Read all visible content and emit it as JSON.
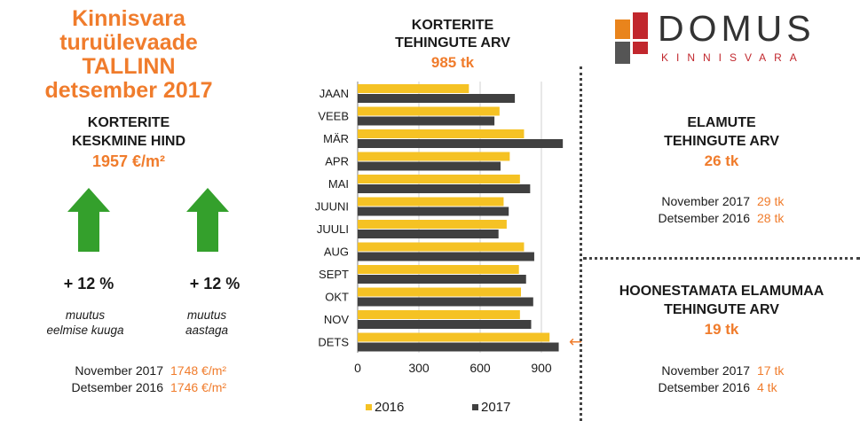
{
  "header": {
    "title_line1": "Kinnisvara turuülevaade",
    "title_line2": "TALLINN",
    "title_line3": "detsember 2017"
  },
  "apartment_price": {
    "heading_line1": "KORTERITE",
    "heading_line2": "KESKMINE HIND",
    "value": "1957 €/m²",
    "monthly_change": "+ 12 %",
    "monthly_caption_line1": "muutus",
    "monthly_caption_line2": "eelmise kuuga",
    "yearly_change": "+ 12 %",
    "yearly_caption_line1": "muutus",
    "yearly_caption_line2": "aastaga",
    "arrow_color": "#34a02c",
    "comparisons": [
      {
        "label": "November  2017",
        "value": "1748 €/m²"
      },
      {
        "label": "Detsember 2016",
        "value": "1746 €/m²"
      }
    ]
  },
  "transactions_chart": {
    "heading_line1": "KORTERITE",
    "heading_line2": "TEHINGUTE ARV",
    "total": "985 tk",
    "current_marker": "←"
  },
  "logo": {
    "name": "DOMUS",
    "subtitle": "KINNISVARA",
    "colors": [
      "#e9841c",
      "#c1272d",
      "#555555",
      "#c1272d"
    ]
  },
  "houses": {
    "heading_line1": "ELAMUTE",
    "heading_line2": "TEHINGUTE ARV",
    "value": "26 tk",
    "comparisons": [
      {
        "label": "November  2017",
        "value": "29 tk"
      },
      {
        "label": "Detsember 2016",
        "value": "28 tk"
      }
    ]
  },
  "land": {
    "heading_line1": "HOONESTAMATA ELAMUMAA",
    "heading_line2": "TEHINGUTE ARV",
    "value": "19 tk",
    "comparisons": [
      {
        "label": "November  2017",
        "value": "17 tk"
      },
      {
        "label": "Detsember 2016",
        "value": "4 tk"
      }
    ]
  },
  "chart_data": {
    "type": "bar",
    "orientation": "horizontal",
    "categories": [
      "JAAN",
      "VEEB",
      "MÄR",
      "APR",
      "MAI",
      "JUUNI",
      "JUULI",
      "AUG",
      "SEPT",
      "OKT",
      "NOV",
      "DETS"
    ],
    "series": [
      {
        "name": "2016",
        "color": "#f5c224",
        "values": [
          545,
          695,
          815,
          745,
          795,
          715,
          730,
          815,
          790,
          800,
          795,
          940
        ]
      },
      {
        "name": "2017",
        "color": "#404040",
        "values": [
          770,
          670,
          1005,
          700,
          845,
          740,
          690,
          865,
          825,
          860,
          850,
          985
        ]
      }
    ],
    "xlim": [
      0,
      1000
    ],
    "xticks": [
      0,
      300,
      600,
      900
    ],
    "grid": true,
    "legend_position": "bottom"
  }
}
